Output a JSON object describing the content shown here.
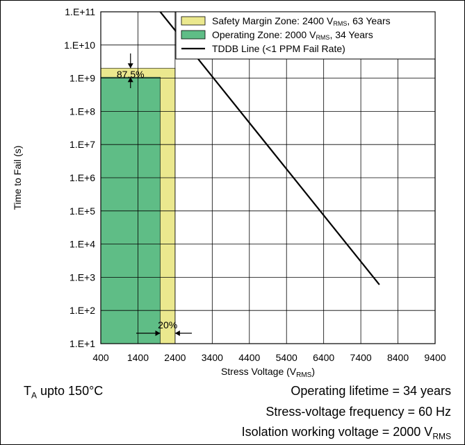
{
  "chart_data": {
    "type": "line",
    "xlabel": "Stress Voltage (V",
    "xlabel_sub": "RMS",
    "xlabel_suffix": ")",
    "ylabel": "Time to Fail (s)",
    "x_range": [
      400,
      9400
    ],
    "y_range_log10": [
      1,
      11
    ],
    "y_scale": "log",
    "grid": true,
    "legend_position": "top-right",
    "x_ticks": [
      "400",
      "1400",
      "2400",
      "3400",
      "4400",
      "5400",
      "6400",
      "7400",
      "8400",
      "9400"
    ],
    "y_ticks": [
      "1.E+1",
      "1.E+2",
      "1.E+3",
      "1.E+4",
      "1.E+5",
      "1.E+6",
      "1.E+7",
      "1.E+8",
      "1.E+9",
      "1.E+10",
      "1.E+11"
    ],
    "zones": [
      {
        "name": "safety-margin-zone",
        "x0": 400,
        "x1": 2400,
        "y_top": 2000000000,
        "color": "#ebe88e"
      },
      {
        "name": "operating-zone",
        "x0": 400,
        "x1": 2000,
        "y_top": 1070000000,
        "color": "#5fbd86"
      }
    ],
    "series": [
      {
        "name": "TDDB Line (<1 PPM Fail Rate)",
        "x": [
          2000,
          7900
        ],
        "y": [
          100000000000,
          600
        ],
        "color": "#000000"
      }
    ],
    "legend": [
      {
        "pre": "Safety Margin Zone: 2400 V",
        "sub": "RMS",
        "post": ", 63 Years",
        "swatch": "#ebe88e"
      },
      {
        "pre": "Operating Zone: 2000 V",
        "sub": "RMS",
        "post": ", 34 Years",
        "swatch": "#5fbd86"
      },
      {
        "pre": "TDDB Line (<1 PPM Fail Rate)",
        "sub": "",
        "post": "",
        "line": "#000000"
      }
    ],
    "annotations": {
      "vertical_margin": "87.5%",
      "horizontal_margin": "20%"
    }
  },
  "notes": {
    "temp_main": "T",
    "temp_sub": "A",
    "temp_rest": " upto 150°C",
    "lifetime": "Operating lifetime = 34 years",
    "frequency": "Stress-voltage frequency = 60 Hz",
    "isolation_pre": "Isolation working voltage = 2000 V",
    "isolation_sub": "RMS"
  }
}
